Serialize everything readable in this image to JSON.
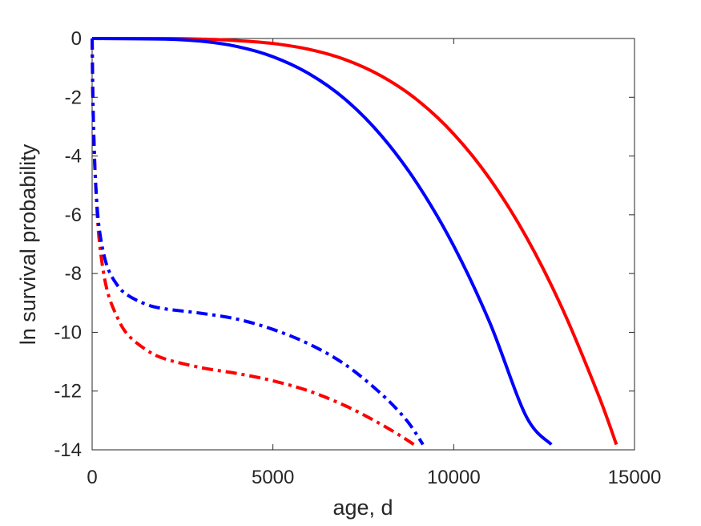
{
  "chart_data": {
    "type": "line",
    "title": "",
    "xlabel": "age, d",
    "ylabel": "ln survival probability",
    "xlim": [
      0,
      15000
    ],
    "ylim": [
      -14,
      0
    ],
    "xticks": [
      0,
      5000,
      10000,
      15000
    ],
    "xtick_labels": [
      "0",
      "5000",
      "10000",
      "15000"
    ],
    "yticks": [
      0,
      -2,
      -4,
      -6,
      -8,
      -10,
      -12,
      -14
    ],
    "ytick_labels": [
      "0",
      "-2",
      "-4",
      "-6",
      "-8",
      "-10",
      "-12",
      "-14"
    ],
    "grid": false,
    "legend": "none",
    "series": [
      {
        "color": "#ff0000",
        "style": "solid",
        "x": [
          0,
          2000,
          3000,
          4000,
          5000,
          6000,
          7000,
          8000,
          9000,
          10000,
          11000,
          12000,
          13000,
          14000,
          14500
        ],
        "y": [
          0,
          0,
          -0.02,
          -0.07,
          -0.17,
          -0.37,
          -0.72,
          -1.28,
          -2.1,
          -3.25,
          -4.78,
          -6.74,
          -9.18,
          -12.13,
          -13.82
        ]
      },
      {
        "color": "#0000ff",
        "style": "solid",
        "x": [
          0,
          2000,
          3000,
          4000,
          5000,
          6000,
          7000,
          8000,
          9000,
          10000,
          11000,
          12000,
          12700
        ],
        "y": [
          0,
          -0.02,
          -0.09,
          -0.27,
          -0.62,
          -1.2,
          -2.07,
          -3.31,
          -4.96,
          -7.06,
          -9.68,
          -12.85,
          -13.82
        ]
      },
      {
        "color": "#ff0000",
        "style": "dashdot",
        "x": [
          0,
          20,
          50,
          100,
          200,
          400,
          700,
          1000,
          1500,
          2000,
          3000,
          4000,
          5000,
          6000,
          7000,
          7800,
          8500,
          8900
        ],
        "y": [
          0,
          -2.0,
          -3.5,
          -5.0,
          -6.9,
          -8.5,
          -9.5,
          -10.1,
          -10.6,
          -10.9,
          -11.2,
          -11.4,
          -11.65,
          -12.0,
          -12.5,
          -13.0,
          -13.5,
          -13.82
        ]
      },
      {
        "color": "#0000ff",
        "style": "dashdot",
        "x": [
          0,
          20,
          50,
          100,
          200,
          400,
          700,
          1000,
          1500,
          2000,
          3000,
          4000,
          5000,
          6000,
          7000,
          8000,
          8700,
          9150
        ],
        "y": [
          0,
          -2.0,
          -3.5,
          -5.0,
          -6.5,
          -7.7,
          -8.4,
          -8.75,
          -9.05,
          -9.2,
          -9.35,
          -9.55,
          -9.9,
          -10.4,
          -11.1,
          -12.1,
          -13.0,
          -13.82
        ]
      }
    ]
  }
}
